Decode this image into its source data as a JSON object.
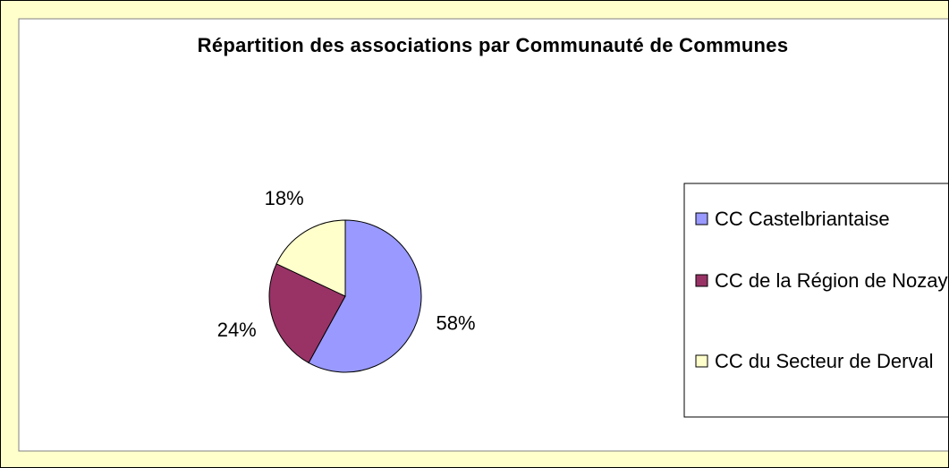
{
  "chart_data": {
    "type": "pie",
    "title": "Répartition des associations par Communauté de Communes",
    "categories": [
      "CC Castelbriantaise",
      "CC de la Région de Nozay",
      "CC du Secteur de Derval"
    ],
    "values": [
      58,
      24,
      18
    ],
    "value_labels": [
      "58%",
      "24%",
      "18%"
    ],
    "colors": [
      "#9999ff",
      "#993366",
      "#ffffcc"
    ],
    "legend": "right"
  }
}
